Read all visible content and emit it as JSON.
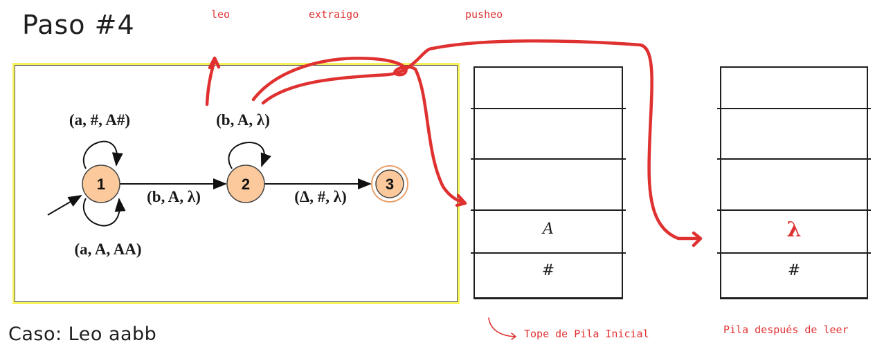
{
  "title": "Paso #4",
  "case_label": "Caso: Leo aabb",
  "annotations": {
    "leo": "leo",
    "extraigo": "extraigo",
    "pusheo": "pusheo",
    "tope_pila_inicial": "Tope de Pila Inicial",
    "pila_despues": "Pila después de leer"
  },
  "automaton": {
    "states": [
      {
        "id": "1",
        "accepting": false,
        "initial": true
      },
      {
        "id": "2",
        "accepting": false,
        "initial": false
      },
      {
        "id": "3",
        "accepting": true,
        "initial": false
      }
    ],
    "transitions": {
      "loop_1_top": "(a, #, A#)",
      "loop_1_bottom": "(a, A, AA)",
      "t_1_2": "(b, A, λ)",
      "loop_2": "(b, A, λ)",
      "t_2_3": "(Δ, #, λ)"
    }
  },
  "stack_initial": {
    "cells": [
      "",
      "",
      "",
      "A",
      "#"
    ]
  },
  "stack_after": {
    "cells": [
      "",
      "",
      "",
      "λ",
      "#"
    ]
  },
  "colors": {
    "annotation": "#e03131",
    "state_fill": "#fbc99b",
    "frame_border": "#f7f25c"
  }
}
